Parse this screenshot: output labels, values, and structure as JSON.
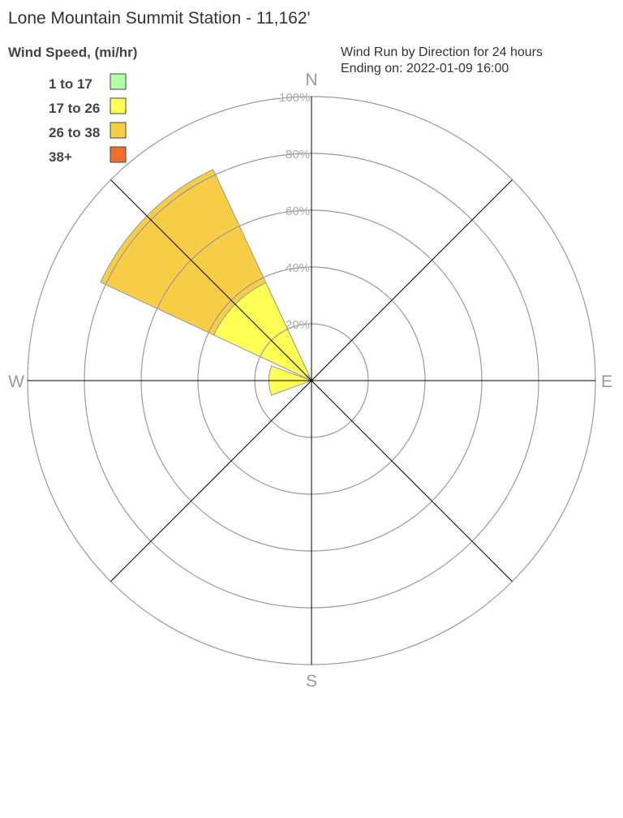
{
  "chart_data": {
    "type": "wind-rose",
    "title": "Lone Mountain Summit Station - 11,162'",
    "subtitle": [
      "Wind Run by Direction for 24 hours",
      "Ending on: 2022-01-09 16:00"
    ],
    "legend_title": "Wind Speed, (mi/hr)",
    "legend_placement": "top-left",
    "bins": [
      {
        "label": "1 to 17",
        "color": "#b3ffa6"
      },
      {
        "label": "17 to 26",
        "color": "#ffff55"
      },
      {
        "label": "26 to 38",
        "color": "#f7cd46"
      },
      {
        "label": "38+",
        "color": "#ee6e2e"
      }
    ],
    "directions": [
      "N",
      "E",
      "S",
      "W"
    ],
    "radial_ticks": [
      "20%",
      "40%",
      "60%",
      "80%",
      "100%"
    ],
    "rmax": 100,
    "series": [
      {
        "direction_deg": 315,
        "cumulative_percent": [
          2,
          38,
          82,
          82
        ]
      },
      {
        "direction_deg": 270,
        "cumulative_percent": [
          1,
          15,
          15,
          15
        ]
      }
    ]
  }
}
